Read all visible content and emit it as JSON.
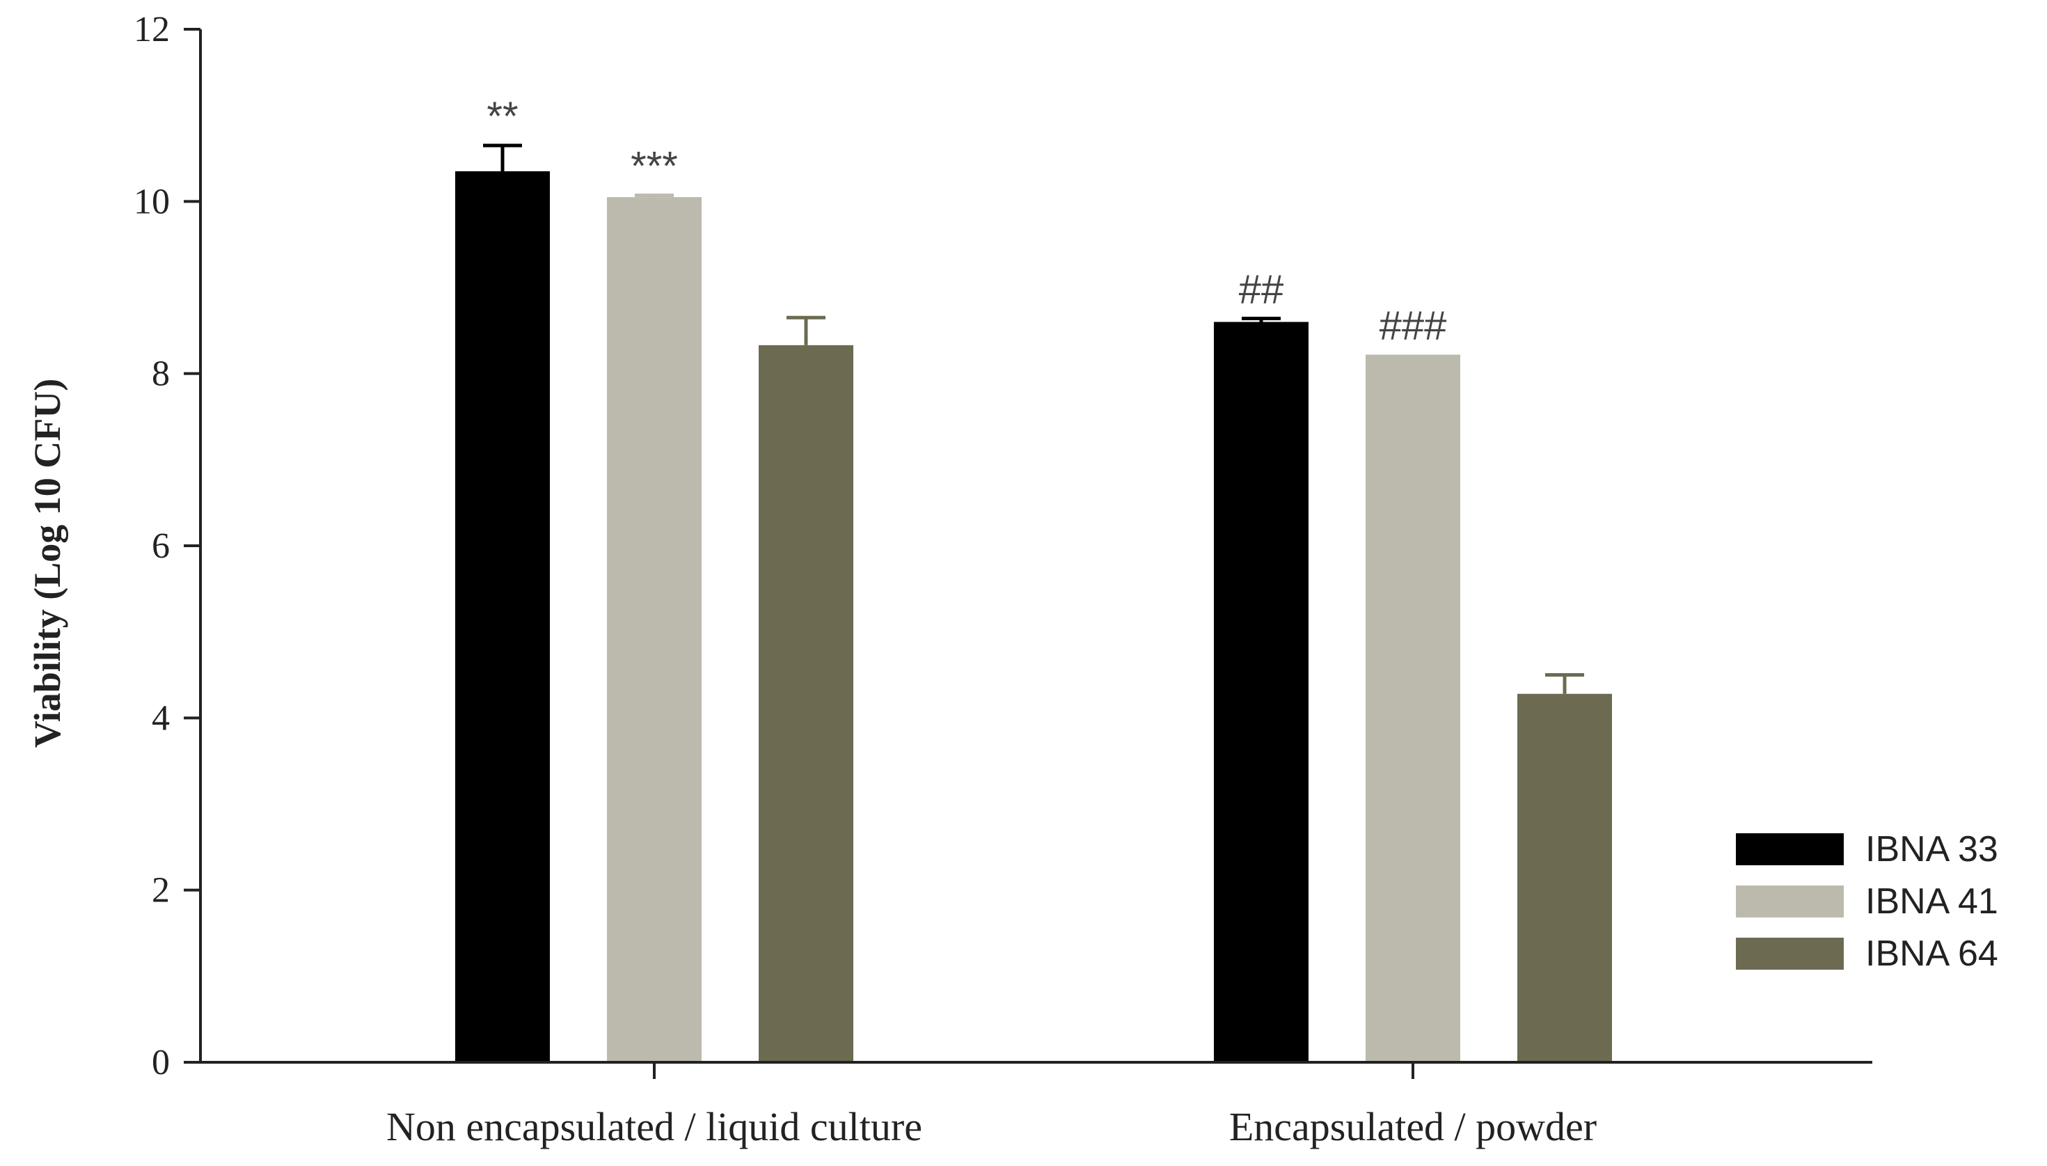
{
  "chart_data": {
    "type": "bar",
    "title": "",
    "xlabel": "",
    "ylabel": "Viability (Log 10 CFU)",
    "ylim": [
      0,
      12
    ],
    "yticks": [
      "0",
      "2",
      "4",
      "6",
      "8",
      "10",
      "12"
    ],
    "grid": false,
    "legend_position": "bottom-right",
    "categories": [
      "Non encapsulated / liquid culture",
      "Encapsulated / powder"
    ],
    "series": [
      {
        "name": "IBNA 33",
        "color": "#000000",
        "values": [
          10.35,
          8.6
        ],
        "errors": [
          0.3,
          0.04
        ],
        "annotations": [
          "**",
          "##"
        ]
      },
      {
        "name": "IBNA 41",
        "color": "#bbbaad",
        "values": [
          10.05,
          8.22
        ],
        "errors": [
          0.02,
          0.0
        ],
        "annotations": [
          "***",
          "###"
        ]
      },
      {
        "name": "IBNA 64",
        "color": "#6c6b52",
        "values": [
          8.33,
          4.28
        ],
        "errors": [
          0.32,
          0.22
        ],
        "annotations": [
          "",
          ""
        ]
      }
    ]
  }
}
